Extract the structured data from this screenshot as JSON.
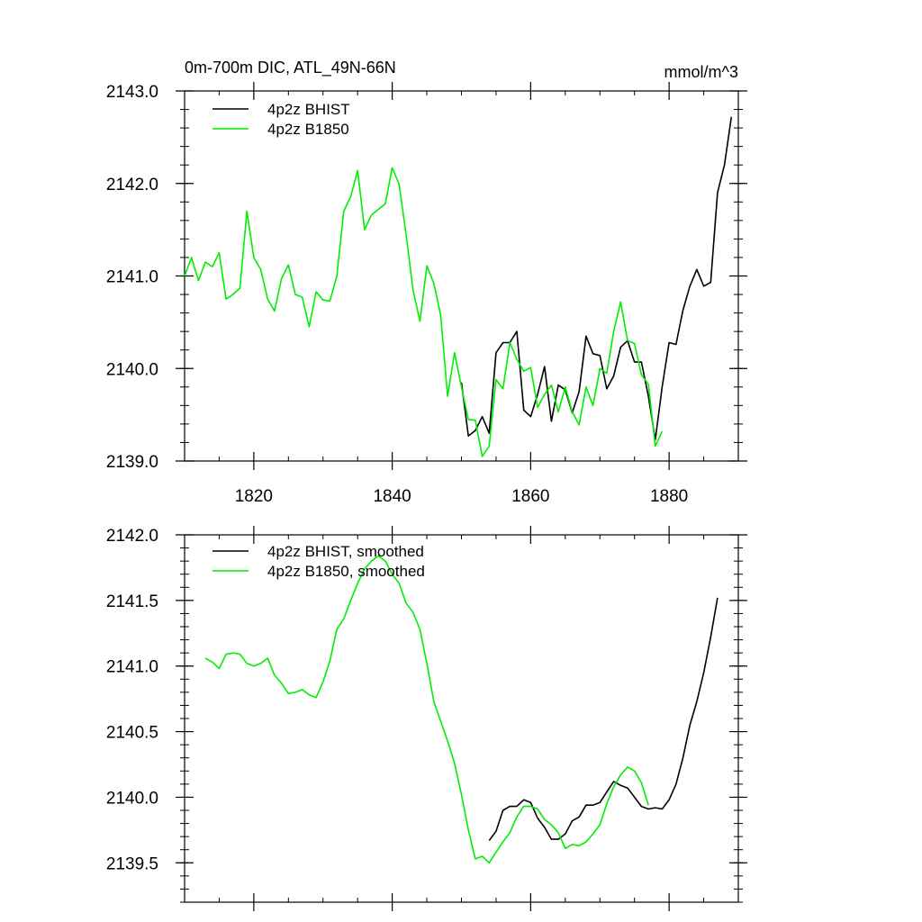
{
  "header": {
    "title": "0m-700m DIC, ATL_49N-66N",
    "units": "mmol/m^3"
  },
  "colors": {
    "bhist": "#000000",
    "b1850": "#00ee00",
    "axis": "#000000"
  },
  "chart_data": [
    {
      "type": "line",
      "title": "0m-700m DIC, ATL_49N-66N",
      "units": "mmol/m^3",
      "xlim": [
        1810,
        1890
      ],
      "ylim": [
        2139.0,
        2143.0
      ],
      "x_ticks": [
        1820,
        1840,
        1860,
        1880
      ],
      "x_tick_labels": [
        "1820",
        "1840",
        "1860",
        "1880"
      ],
      "y_ticks": [
        2139.0,
        2140.0,
        2141.0,
        2142.0,
        2143.0
      ],
      "y_tick_labels": [
        "2139.0",
        "2140.0",
        "2141.0",
        "2142.0",
        "2143.0"
      ],
      "legend": "top-left",
      "grid": false,
      "series": [
        {
          "name": "4p2z BHIST",
          "color": "#000000",
          "x": [
            1850,
            1851,
            1852,
            1853,
            1854,
            1855,
            1856,
            1857,
            1858,
            1859,
            1860,
            1861,
            1862,
            1863,
            1864,
            1865,
            1866,
            1867,
            1868,
            1869,
            1870,
            1871,
            1872,
            1873,
            1874,
            1875,
            1876,
            1877,
            1878,
            1879,
            1880,
            1881,
            1882,
            1883,
            1884,
            1885,
            1886,
            1887,
            1888,
            1889
          ],
          "y": [
            2139.85,
            2139.27,
            2139.33,
            2139.48,
            2139.3,
            2140.17,
            2140.28,
            2140.28,
            2140.4,
            2139.55,
            2139.48,
            2139.72,
            2140.02,
            2139.43,
            2139.82,
            2139.77,
            2139.52,
            2139.75,
            2140.35,
            2140.16,
            2140.14,
            2139.78,
            2139.92,
            2140.23,
            2140.3,
            2140.07,
            2140.07,
            2139.7,
            2139.23,
            2139.8,
            2140.28,
            2140.26,
            2140.63,
            2140.89,
            2141.07,
            2140.89,
            2140.93,
            2141.9,
            2142.2,
            2142.72
          ]
        },
        {
          "name": "4p2z B1850",
          "color": "#00ee00",
          "x": [
            1810,
            1811,
            1812,
            1813,
            1814,
            1815,
            1816,
            1817,
            1818,
            1819,
            1820,
            1821,
            1822,
            1823,
            1824,
            1825,
            1826,
            1827,
            1828,
            1829,
            1830,
            1831,
            1832,
            1833,
            1834,
            1835,
            1836,
            1837,
            1838,
            1839,
            1840,
            1841,
            1842,
            1843,
            1844,
            1845,
            1846,
            1847,
            1848,
            1849,
            1850,
            1851,
            1852,
            1853,
            1854,
            1855,
            1856,
            1857,
            1858,
            1859,
            1860,
            1861,
            1862,
            1863,
            1864,
            1865,
            1866,
            1867,
            1868,
            1869,
            1870,
            1871,
            1872,
            1873,
            1874,
            1875,
            1876,
            1877,
            1878,
            1879
          ],
          "y": [
            2141.0,
            2141.2,
            2140.95,
            2141.15,
            2141.1,
            2141.25,
            2140.75,
            2140.8,
            2140.87,
            2141.7,
            2141.2,
            2141.07,
            2140.75,
            2140.62,
            2140.97,
            2141.12,
            2140.8,
            2140.77,
            2140.45,
            2140.83,
            2140.74,
            2140.73,
            2141.0,
            2141.7,
            2141.86,
            2142.14,
            2141.5,
            2141.66,
            2141.72,
            2141.78,
            2142.17,
            2141.99,
            2141.45,
            2140.85,
            2140.51,
            2141.11,
            2140.92,
            2140.58,
            2139.7,
            2140.17,
            2139.8,
            2139.45,
            2139.44,
            2139.05,
            2139.16,
            2139.88,
            2139.78,
            2140.28,
            2140.1,
            2139.97,
            2140.01,
            2139.58,
            2139.72,
            2139.82,
            2139.53,
            2139.8,
            2139.53,
            2139.39,
            2139.8,
            2139.6,
            2140.0,
            2139.95,
            2140.4,
            2140.72,
            2140.3,
            2140.27,
            2139.93,
            2139.83,
            2139.16,
            2139.32
          ]
        }
      ]
    },
    {
      "type": "line",
      "xlim": [
        1810,
        1890
      ],
      "ylim": [
        2139.2,
        2142.0
      ],
      "x_ticks": [
        1820,
        1840,
        1860,
        1880
      ],
      "y_ticks": [
        2139.5,
        2140.0,
        2140.5,
        2141.0,
        2141.5,
        2142.0
      ],
      "y_tick_labels": [
        "2139.5",
        "2140.0",
        "2140.5",
        "2141.0",
        "2141.5",
        "2142.0"
      ],
      "legend": "top-left",
      "grid": false,
      "series": [
        {
          "name": "4p2z BHIST, smoothed",
          "color": "#000000",
          "x": [
            1854,
            1855,
            1856,
            1857,
            1858,
            1859,
            1860,
            1861,
            1862,
            1863,
            1864,
            1865,
            1866,
            1867,
            1868,
            1869,
            1870,
            1871,
            1872,
            1873,
            1874,
            1875,
            1876,
            1877,
            1878,
            1879,
            1880,
            1881,
            1882,
            1883,
            1884,
            1885,
            1886,
            1887
          ],
          "y": [
            2139.67,
            2139.74,
            2139.9,
            2139.93,
            2139.93,
            2139.98,
            2139.96,
            2139.84,
            2139.77,
            2139.68,
            2139.68,
            2139.72,
            2139.82,
            2139.85,
            2139.94,
            2139.94,
            2139.96,
            2140.04,
            2140.12,
            2140.09,
            2140.07,
            2140.0,
            2139.93,
            2139.91,
            2139.92,
            2139.91,
            2139.98,
            2140.1,
            2140.3,
            2140.55,
            2140.73,
            2140.95,
            2141.22,
            2141.52
          ]
        },
        {
          "name": "4p2z B1850, smoothed",
          "color": "#00ee00",
          "x": [
            1813,
            1814,
            1815,
            1816,
            1817,
            1818,
            1819,
            1820,
            1821,
            1822,
            1823,
            1824,
            1825,
            1826,
            1827,
            1828,
            1829,
            1830,
            1831,
            1832,
            1833,
            1834,
            1835,
            1836,
            1837,
            1838,
            1839,
            1840,
            1841,
            1842,
            1843,
            1844,
            1845,
            1846,
            1847,
            1848,
            1849,
            1850,
            1851,
            1852,
            1853,
            1854,
            1855,
            1856,
            1857,
            1858,
            1859,
            1860,
            1861,
            1862,
            1863,
            1864,
            1865,
            1866,
            1867,
            1868,
            1869,
            1870,
            1871,
            1872,
            1873,
            1874,
            1875,
            1876,
            1877
          ],
          "y": [
            2141.06,
            2141.03,
            2140.98,
            2141.09,
            2141.1,
            2141.09,
            2141.02,
            2141.0,
            2141.02,
            2141.06,
            2140.93,
            2140.87,
            2140.79,
            2140.8,
            2140.82,
            2140.78,
            2140.76,
            2140.88,
            2141.04,
            2141.28,
            2141.36,
            2141.5,
            2141.63,
            2141.74,
            2141.8,
            2141.84,
            2141.8,
            2141.7,
            2141.63,
            2141.48,
            2141.41,
            2141.28,
            2141.02,
            2140.73,
            2140.58,
            2140.43,
            2140.26,
            2140.02,
            2139.75,
            2139.53,
            2139.55,
            2139.5,
            2139.58,
            2139.66,
            2139.73,
            2139.85,
            2139.93,
            2139.93,
            2139.91,
            2139.83,
            2139.79,
            2139.73,
            2139.61,
            2139.64,
            2139.63,
            2139.66,
            2139.72,
            2139.79,
            2139.95,
            2140.08,
            2140.17,
            2140.23,
            2140.2,
            2140.11,
            2139.94
          ]
        }
      ]
    }
  ]
}
